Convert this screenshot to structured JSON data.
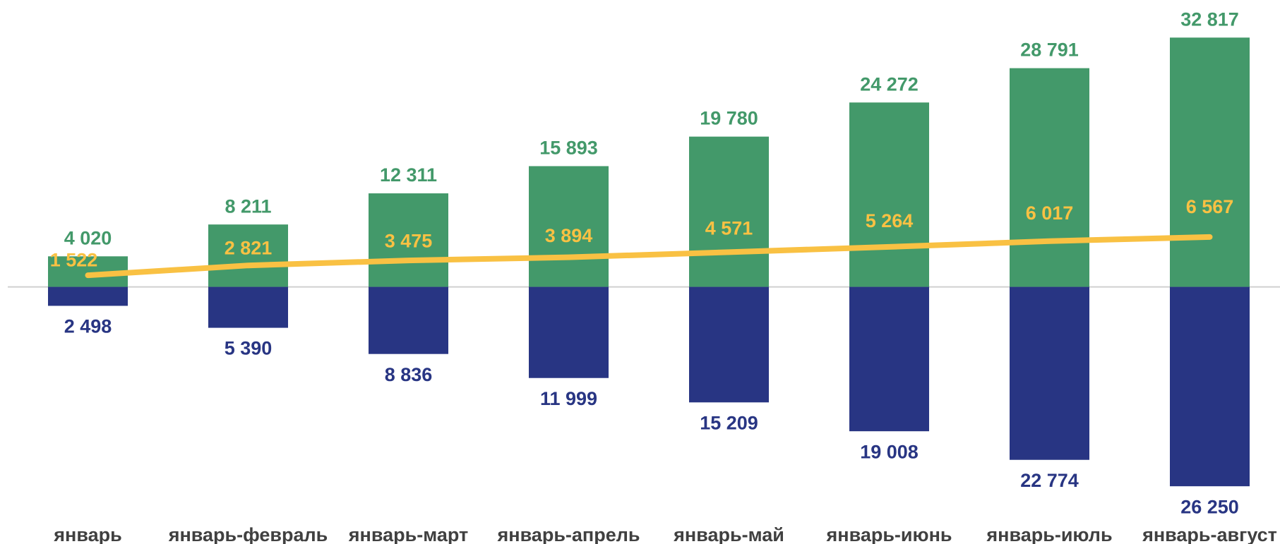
{
  "chart_data": {
    "type": "bar",
    "categories": [
      "январь",
      "январь-февраль",
      "январь-март",
      "январь-апрель",
      "январь-май",
      "январь-июнь",
      "январь-июль",
      "январь-август"
    ],
    "series": [
      {
        "color": "#43996a",
        "values": [
          4020,
          8211,
          12311,
          15893,
          19780,
          24272,
          28791,
          32817
        ],
        "value_labels": [
          "4 020",
          "8 211",
          "12 311",
          "15 893",
          "19 780",
          "24 272",
          "28 791",
          "32 817"
        ]
      },
      {
        "color": "#283583",
        "values": [
          -2498,
          -5390,
          -8836,
          -11999,
          -15209,
          -19008,
          -22774,
          -26250
        ],
        "value_labels": [
          "2 498",
          "5 390",
          "8 836",
          "11 999",
          "15 209",
          "19 008",
          "22 774",
          "26 250"
        ]
      },
      {
        "type": "line",
        "color": "#f9c143",
        "values": [
          1522,
          2821,
          3475,
          3894,
          4571,
          5264,
          6017,
          6567
        ],
        "value_labels": [
          "1 522",
          "2 821",
          "3 475",
          "3 894",
          "4 571",
          "5 264",
          "6 017",
          "6 567"
        ]
      }
    ],
    "ylim": [
      -28000,
      36000
    ]
  }
}
